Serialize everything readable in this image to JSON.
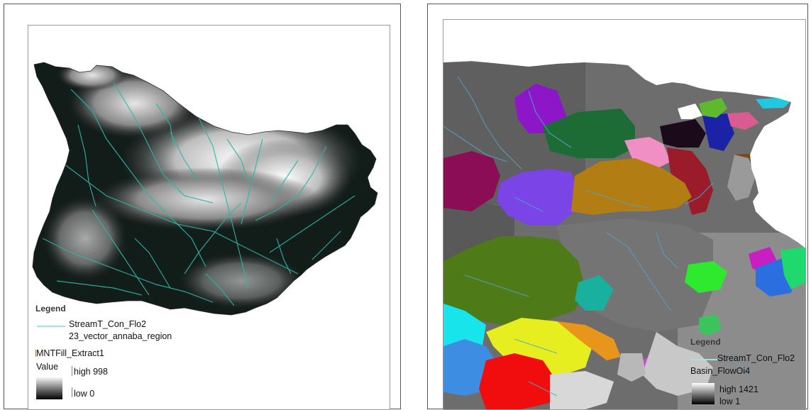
{
  "left_map": {
    "legend": {
      "title": "Legend",
      "stream_layer": "StreamT_Con_Flo2",
      "region_layer": "23_vector_annaba_region",
      "raster_layer": "MNTFill_Extract1",
      "value_label": "Value",
      "high_label": "high 998",
      "low_label": "low 0"
    },
    "colors": {
      "terrain_dark": "#0e1a17",
      "terrain_light": "#f2f2f2",
      "streams": "#2ab7a6"
    }
  },
  "right_map": {
    "legend": {
      "title": "Legend",
      "stream_layer": "StreamT_Con_Flo2",
      "basin_layer": "Basin_FlowOi4",
      "high_label": "high 1421",
      "low_label": "low 1"
    },
    "colors": {
      "background_basins": "#6d6d6d",
      "streams": "#4fa6c9"
    }
  }
}
